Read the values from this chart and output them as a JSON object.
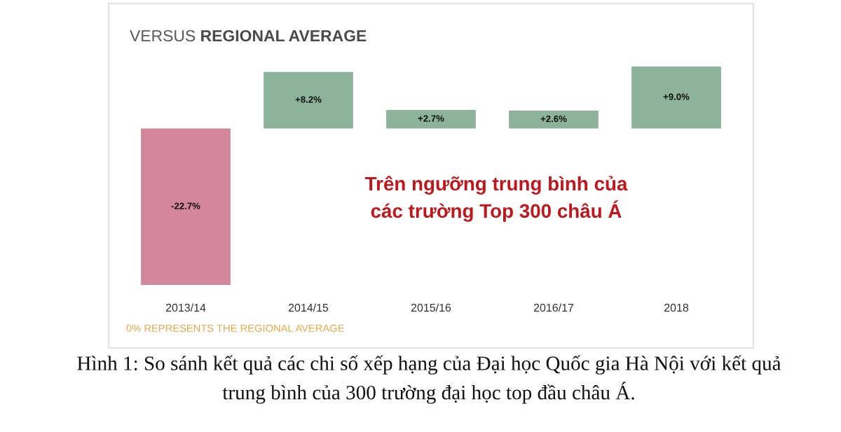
{
  "chart_data": {
    "type": "bar",
    "title": "VERSUS REGIONAL AVERAGE",
    "categories": [
      "2013/14",
      "2014/15",
      "2015/16",
      "2016/17",
      "2018"
    ],
    "values": [
      -22.7,
      8.2,
      2.7,
      2.6,
      9.0
    ],
    "colors": [
      "#d4879c",
      "#8db49a",
      "#8db49a",
      "#8db49a",
      "#8db49a"
    ],
    "value_labels": [
      "-22.7%",
      "+8.2%",
      "+2.7%",
      "+2.6%",
      "+9.0%"
    ],
    "annotations": [
      "Trên ngưỡng trung bình của\ncác trường Top 300 châu Á",
      "0% REPRESENTS THE REGIONAL AVERAGE",
      "Hình 1: So sánh kết quả các chi số xếp hạng của Đại học Quốc gia Hà Nội với kết quả\ntrung bình của 300 trường đại học top đầu châu Á."
    ]
  }
}
